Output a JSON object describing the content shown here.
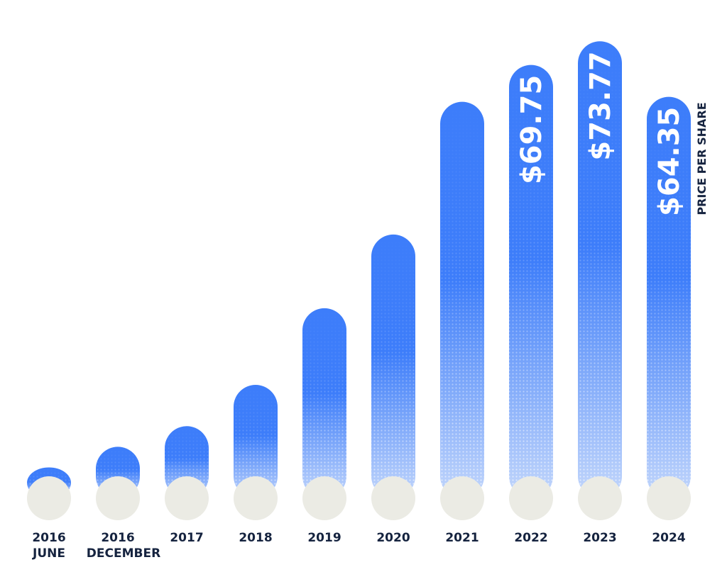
{
  "chart_data": {
    "type": "bar",
    "categories": [
      [
        "2016",
        "JUNE"
      ],
      [
        "2016",
        "DECEMBER"
      ],
      [
        "2017"
      ],
      [
        "2018"
      ],
      [
        "2019"
      ],
      [
        "2020"
      ],
      [
        "2021"
      ],
      [
        "2022"
      ],
      [
        "2023"
      ],
      [
        "2024"
      ]
    ],
    "values": [
      1.5,
      5,
      8.5,
      15.5,
      28.5,
      41,
      63.5,
      69.75,
      73.77,
      64.35
    ],
    "data_labels": [
      "",
      "",
      "",
      "",
      "",
      "",
      "",
      "$69.75",
      "$73.77",
      "$64.35"
    ],
    "ylabel": "PRICE PER SHARE",
    "ylim": [
      0,
      75
    ],
    "grid": false,
    "legend": "none"
  },
  "colors": {
    "bar_top": "#3d7dfa",
    "bar_bottom": "#c2d6fb",
    "base_circle": "#ebebe4",
    "label_text": "#15233f",
    "value_text": "#ffffff",
    "background": "#ffffff"
  }
}
